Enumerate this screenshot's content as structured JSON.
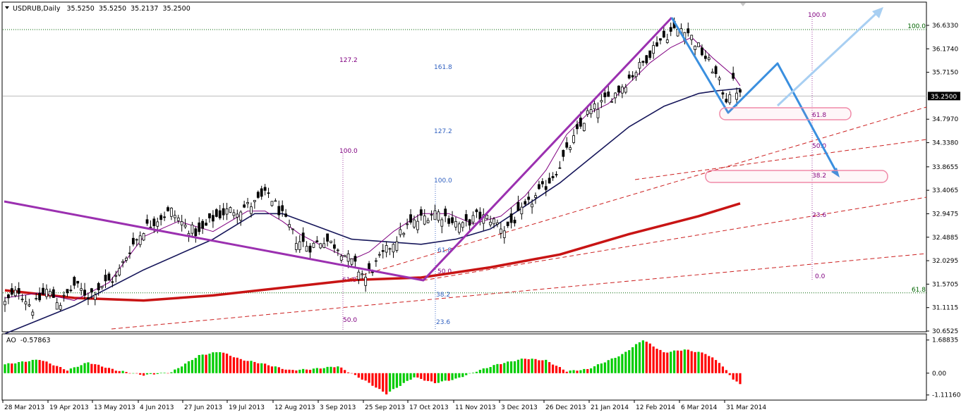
{
  "chart_data": {
    "type": "candlestick",
    "symbol": "USDRUB",
    "timeframe": "Daily",
    "ohlc_header": [
      "35.5250",
      "35.5250",
      "35.2137",
      "35.2500"
    ],
    "price_axis": {
      "ticks": [
        36.633,
        36.174,
        35.715,
        34.797,
        34.338,
        33.8655,
        33.4065,
        32.9475,
        32.4885,
        32.0295,
        31.5705,
        31.1115,
        30.6525
      ],
      "tick_labels": [
        "36.6330",
        "36.1740",
        "35.7150",
        "34.7970",
        "34.3380",
        "33.8655",
        "33.4065",
        "32.9475",
        "32.4885",
        "32.0295",
        "31.5705",
        "31.1115",
        "30.6525"
      ],
      "ylim": [
        30.6,
        37.0
      ],
      "current": "35.2500"
    },
    "date_axis": {
      "labels": [
        "28 Mar 2013",
        "19 Apr 2013",
        "13 May 2013",
        "4 Jun 2013",
        "27 Jun 2013",
        "19 Jul 2013",
        "12 Aug 2013",
        "3 Sep 2013",
        "25 Sep 2013",
        "17 Oct 2013",
        "11 Nov 2013",
        "3 Dec 2013",
        "26 Dec 2013",
        "21 Jan 2014",
        "12 Feb 2014",
        "6 Mar 2014",
        "31 Mar 2014"
      ]
    },
    "close_path": [
      [
        0,
        31.2
      ],
      [
        4,
        31.45
      ],
      [
        8,
        31.1
      ],
      [
        12,
        31.45
      ],
      [
        16,
        31.2
      ],
      [
        20,
        31.55
      ],
      [
        24,
        31.35
      ],
      [
        28,
        31.55
      ],
      [
        32,
        31.7
      ],
      [
        36,
        32.25
      ],
      [
        40,
        32.65
      ],
      [
        44,
        32.85
      ],
      [
        48,
        33.0
      ],
      [
        52,
        32.7
      ],
      [
        56,
        32.55
      ],
      [
        60,
        32.85
      ],
      [
        64,
        33.0
      ],
      [
        68,
        33.05
      ],
      [
        72,
        33.15
      ],
      [
        76,
        33.35
      ],
      [
        80,
        32.9
      ],
      [
        84,
        32.45
      ],
      [
        88,
        32.3
      ],
      [
        92,
        32.45
      ],
      [
        96,
        32.3
      ],
      [
        100,
        32.0
      ],
      [
        104,
        31.7
      ],
      [
        108,
        32.05
      ],
      [
        112,
        32.4
      ],
      [
        116,
        32.7
      ],
      [
        120,
        32.85
      ],
      [
        124,
        33.0
      ],
      [
        128,
        32.85
      ],
      [
        132,
        32.7
      ],
      [
        136,
        32.9
      ],
      [
        140,
        32.85
      ],
      [
        144,
        32.65
      ],
      [
        148,
        32.9
      ],
      [
        152,
        33.2
      ],
      [
        156,
        33.5
      ],
      [
        160,
        33.9
      ],
      [
        164,
        34.4
      ],
      [
        168,
        34.9
      ],
      [
        172,
        35.1
      ],
      [
        176,
        35.3
      ],
      [
        180,
        35.6
      ],
      [
        184,
        35.9
      ],
      [
        188,
        36.3
      ],
      [
        192,
        36.5
      ],
      [
        196,
        36.6
      ],
      [
        200,
        36.2
      ],
      [
        204,
        35.8
      ],
      [
        208,
        35.2
      ],
      [
        210,
        35.5
      ],
      [
        212,
        35.25
      ]
    ],
    "series": [
      {
        "name": "",
        "color": "#c81414",
        "values": [
          [
            0,
            31.45
          ],
          [
            20,
            31.3
          ],
          [
            40,
            31.25
          ],
          [
            60,
            31.35
          ],
          [
            80,
            31.5
          ],
          [
            100,
            31.65
          ],
          [
            120,
            31.7
          ],
          [
            140,
            31.9
          ],
          [
            160,
            32.15
          ],
          [
            180,
            32.55
          ],
          [
            200,
            32.9
          ],
          [
            212,
            33.15
          ]
        ]
      },
      {
        "name": "",
        "color": "#16165a",
        "values": [
          [
            0,
            30.6
          ],
          [
            20,
            31.15
          ],
          [
            40,
            31.85
          ],
          [
            60,
            32.45
          ],
          [
            72,
            32.95
          ],
          [
            80,
            32.95
          ],
          [
            90,
            32.7
          ],
          [
            100,
            32.45
          ],
          [
            110,
            32.4
          ],
          [
            120,
            32.35
          ],
          [
            130,
            32.45
          ],
          [
            140,
            32.65
          ],
          [
            150,
            33.1
          ],
          [
            160,
            33.55
          ],
          [
            170,
            34.1
          ],
          [
            180,
            34.65
          ],
          [
            190,
            35.05
          ],
          [
            200,
            35.3
          ],
          [
            205,
            35.35
          ],
          [
            212,
            35.4
          ]
        ]
      },
      {
        "name": "",
        "color": "#800080",
        "values": [
          [
            0,
            31.3
          ],
          [
            10,
            31.4
          ],
          [
            20,
            31.25
          ],
          [
            30,
            31.6
          ],
          [
            40,
            32.5
          ],
          [
            50,
            32.8
          ],
          [
            60,
            32.6
          ],
          [
            70,
            33.0
          ],
          [
            75,
            33.0
          ],
          [
            80,
            32.8
          ],
          [
            85,
            32.55
          ],
          [
            92,
            32.3
          ],
          [
            100,
            32.05
          ],
          [
            105,
            32.2
          ],
          [
            112,
            32.6
          ],
          [
            120,
            32.95
          ],
          [
            128,
            32.95
          ],
          [
            135,
            32.75
          ],
          [
            143,
            32.9
          ],
          [
            150,
            33.3
          ],
          [
            156,
            33.8
          ],
          [
            162,
            34.5
          ],
          [
            168,
            34.9
          ],
          [
            174,
            35.1
          ],
          [
            180,
            35.5
          ],
          [
            186,
            35.9
          ],
          [
            192,
            36.2
          ],
          [
            198,
            36.4
          ],
          [
            204,
            36.0
          ],
          [
            210,
            35.65
          ],
          [
            212,
            35.45
          ]
        ]
      }
    ],
    "levels": [
      {
        "label": "100.0",
        "value": 36.55,
        "color": "#006400"
      },
      {
        "label": "61.8",
        "value": 31.4,
        "color": "#006400"
      }
    ],
    "fib_labels": [
      {
        "text": "127.2",
        "color": "#800080"
      },
      {
        "text": "161.8",
        "color": "#3060c0"
      },
      {
        "text": "127.2",
        "color": "#3060c0"
      },
      {
        "text": "100.0",
        "color": "#800080"
      },
      {
        "text": "100.0",
        "color": "#3060c0"
      },
      {
        "text": "61.8",
        "color": "#800080"
      },
      {
        "text": "61.8",
        "color": "#3060c0"
      },
      {
        "text": "50.0",
        "color": "#800080"
      },
      {
        "text": "50.0",
        "color": "#800080"
      },
      {
        "text": "38.2",
        "color": "#3060c0"
      },
      {
        "text": "23.6",
        "color": "#3060c0"
      },
      {
        "text": "100.0",
        "color": "#800080"
      },
      {
        "text": "61.8",
        "color": "#800080"
      },
      {
        "text": "50.0",
        "color": "#800080"
      },
      {
        "text": "38.2",
        "color": "#800080"
      },
      {
        "text": "23.6",
        "color": "#800080"
      },
      {
        "text": "0.0",
        "color": "#800080"
      }
    ],
    "oscillator": {
      "name": "AO",
      "value": "-0.57863",
      "tick_labels": [
        "1.68835",
        "0.00",
        "-1.11160"
      ],
      "ylim": [
        -1.3,
        1.75
      ],
      "up_color": "#00cc00",
      "down_color": "#ff0000"
    },
    "colors": {
      "bull_candle": "#ffffff",
      "bear_candle": "#000000",
      "purple_pattern": "#9b30b0",
      "blue_projection": "#3a8fdf",
      "pink_zone": "#f08aa8",
      "trend_dash": "#cc2020"
    }
  }
}
